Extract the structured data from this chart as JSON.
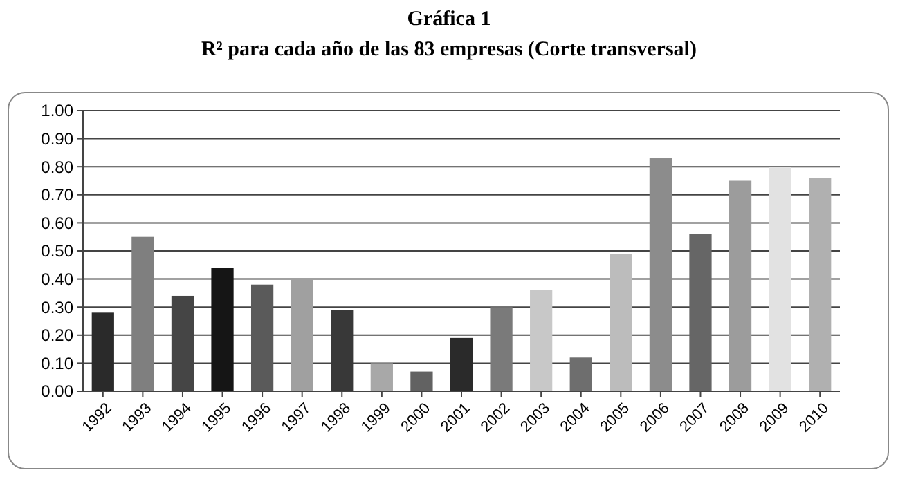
{
  "chart_data": {
    "type": "bar",
    "title": "Gráfica 1",
    "subtitle": "R² para cada año de las 83 empresas (Corte transversal)",
    "categories": [
      "1992",
      "1993",
      "1994",
      "1995",
      "1996",
      "1997",
      "1998",
      "1999",
      "2000",
      "2001",
      "2002",
      "2003",
      "2004",
      "2005",
      "2006",
      "2007",
      "2008",
      "2009",
      "2010"
    ],
    "values": [
      0.28,
      0.55,
      0.34,
      0.44,
      0.38,
      0.4,
      0.29,
      0.1,
      0.07,
      0.19,
      0.3,
      0.36,
      0.12,
      0.49,
      0.83,
      0.56,
      0.75,
      0.8,
      0.76
    ],
    "colors": [
      "#2a2a2a",
      "#7f7f7f",
      "#454545",
      "#151515",
      "#5a5a5a",
      "#a0a0a0",
      "#383838",
      "#a8a8a8",
      "#626262",
      "#2a2a2a",
      "#7a7a7a",
      "#c8c8c8",
      "#6e6e6e",
      "#bcbcbc",
      "#8c8c8c",
      "#666666",
      "#9c9c9c",
      "#e2e2e2",
      "#b0b0b0"
    ],
    "ylim": [
      0,
      1
    ],
    "yticks": [
      {
        "value": 0,
        "label": "0.00"
      },
      {
        "value": 0.1,
        "label": "0.10"
      },
      {
        "value": 0.2,
        "label": "0.20"
      },
      {
        "value": 0.3,
        "label": "0.30"
      },
      {
        "value": 0.4,
        "label": "0.40"
      },
      {
        "value": 0.5,
        "label": "0.50"
      },
      {
        "value": 0.6,
        "label": "0.60"
      },
      {
        "value": 0.7,
        "label": "0.70"
      },
      {
        "value": 0.8,
        "label": "0.80"
      },
      {
        "value": 0.9,
        "label": "0.90"
      },
      {
        "value": 1,
        "label": "1.00"
      }
    ],
    "grid": "y"
  }
}
